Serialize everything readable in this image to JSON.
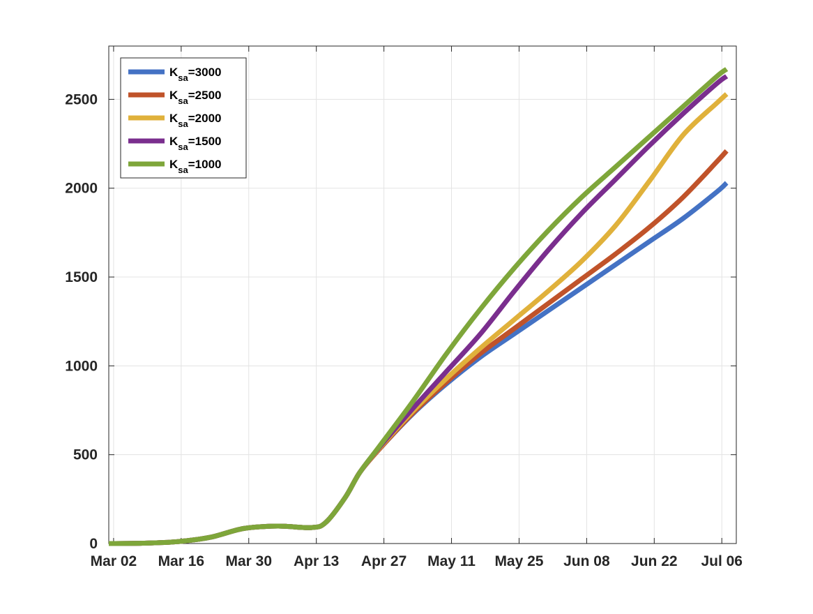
{
  "chart_data": {
    "type": "line",
    "title": "",
    "xlabel": "",
    "ylabel": "",
    "x": [
      "Mar 01",
      "Mar 08",
      "Mar 15",
      "Mar 22",
      "Mar 29",
      "Apr 05",
      "Apr 12",
      "Apr 15",
      "Apr 19",
      "Apr 22",
      "Apr 26",
      "May 03",
      "May 10",
      "May 17",
      "May 24",
      "May 31",
      "Jun 07",
      "Jun 14",
      "Jun 21",
      "Jun 28",
      "Jul 05",
      "Jul 07"
    ],
    "xlim": [
      "Mar 01",
      "Jul 09"
    ],
    "xticks": [
      "Mar 02",
      "Mar 16",
      "Mar 30",
      "Apr 13",
      "Apr 27",
      "May 11",
      "May 25",
      "Jun 08",
      "Jun 22",
      "Jul 06"
    ],
    "ylim": [
      0,
      2800
    ],
    "yticks": [
      0,
      500,
      1000,
      1500,
      2000,
      2500
    ],
    "ytick_labels": [
      "0",
      "500",
      "1000",
      "1500",
      "2000",
      "2500"
    ],
    "grid": true,
    "legend_position": "top-left",
    "series": [
      {
        "name": "3000",
        "color": "#4472c4",
        "values": [
          0,
          2,
          10,
          35,
          85,
          98,
          90,
          120,
          260,
          400,
          530,
          730,
          900,
          1050,
          1180,
          1310,
          1440,
          1570,
          1700,
          1830,
          1980,
          2030
        ]
      },
      {
        "name": "2500",
        "color": "#c0532a",
        "values": [
          0,
          2,
          10,
          35,
          85,
          98,
          90,
          120,
          260,
          400,
          530,
          735,
          910,
          1070,
          1210,
          1350,
          1490,
          1630,
          1780,
          1950,
          2150,
          2210
        ]
      },
      {
        "name": "2000",
        "color": "#e0b13b",
        "values": [
          0,
          2,
          10,
          35,
          85,
          98,
          90,
          120,
          260,
          400,
          535,
          745,
          930,
          1100,
          1260,
          1420,
          1590,
          1790,
          2040,
          2300,
          2480,
          2530
        ]
      },
      {
        "name": "1500",
        "color": "#7a2e8e",
        "values": [
          0,
          2,
          10,
          35,
          85,
          98,
          90,
          120,
          260,
          400,
          540,
          760,
          970,
          1180,
          1420,
          1650,
          1860,
          2050,
          2240,
          2420,
          2590,
          2630
        ]
      },
      {
        "name": "1000",
        "color": "#7ea63a",
        "values": [
          0,
          2,
          10,
          35,
          85,
          98,
          90,
          120,
          260,
          400,
          545,
          800,
          1070,
          1320,
          1550,
          1760,
          1950,
          2120,
          2290,
          2460,
          2630,
          2670
        ]
      }
    ],
    "legend_prefix": "K",
    "legend_subscript": "sa",
    "legend_equals": "="
  }
}
